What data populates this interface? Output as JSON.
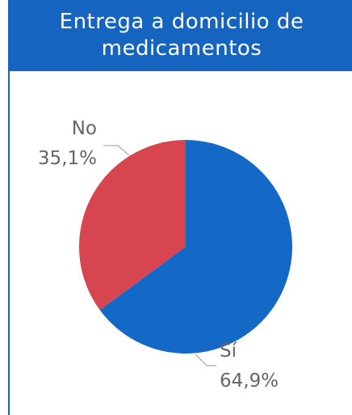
{
  "chart_data": {
    "type": "pie",
    "title": "Entrega a domicilio de medicamentos",
    "categories": [
      "Sí",
      "No"
    ],
    "values": [
      64.9,
      35.1
    ],
    "value_labels": [
      "64,9%",
      "35,1%"
    ],
    "colors": [
      "#1469c7",
      "#d64550"
    ]
  }
}
